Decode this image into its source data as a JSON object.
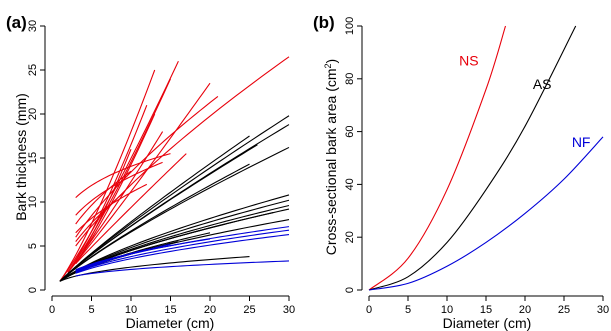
{
  "chart_data": [
    {
      "panel": "(a)",
      "type": "line",
      "xlabel": "Diameter (cm)",
      "ylabel": "Bark thickness (mm)",
      "xlim": [
        0,
        30
      ],
      "ylim": [
        0,
        30
      ],
      "xticks": [
        0,
        5,
        10,
        15,
        20,
        25,
        30
      ],
      "yticks": [
        0,
        5,
        10,
        15,
        20,
        25,
        30
      ],
      "grid": false,
      "colors": {
        "red": "#e8000b",
        "black": "#000000",
        "blue": "#0000d8"
      },
      "series": [
        {
          "color": "red",
          "x": [
            1,
            13
          ],
          "y": [
            1,
            25
          ]
        },
        {
          "color": "red",
          "x": [
            1,
            16
          ],
          "y": [
            1,
            26
          ]
        },
        {
          "color": "red",
          "x": [
            2,
            15
          ],
          "y": [
            2,
            24
          ]
        },
        {
          "color": "red",
          "x": [
            2,
            20
          ],
          "y": [
            2,
            23.5
          ]
        },
        {
          "color": "red",
          "x": [
            2,
            12
          ],
          "y": [
            2,
            21
          ]
        },
        {
          "color": "red",
          "x": [
            3,
            13
          ],
          "y": [
            3,
            20
          ]
        },
        {
          "color": "red",
          "x": [
            2,
            14
          ],
          "y": [
            2,
            18
          ]
        },
        {
          "color": "red",
          "x": [
            3,
            10
          ],
          "y": [
            3,
            16
          ]
        },
        {
          "color": "red",
          "x": [
            3,
            17
          ],
          "y": [
            3,
            15.5
          ]
        },
        {
          "color": "red",
          "x": [
            3,
            30
          ],
          "y": [
            5,
            26.5
          ]
        },
        {
          "color": "red",
          "x": [
            3,
            21
          ],
          "y": [
            6,
            22
          ]
        },
        {
          "color": "red",
          "x": [
            3,
            15
          ],
          "y": [
            10.5,
            15.5
          ]
        },
        {
          "color": "red",
          "x": [
            3,
            14
          ],
          "y": [
            8.5,
            14.5
          ]
        },
        {
          "color": "red",
          "x": [
            3,
            10
          ],
          "y": [
            7.5,
            13.5
          ]
        },
        {
          "color": "red",
          "x": [
            3,
            12
          ],
          "y": [
            6.5,
            12
          ]
        },
        {
          "color": "red",
          "x": [
            3,
            9
          ],
          "y": [
            5.5,
            11
          ]
        },
        {
          "color": "black",
          "x": [
            1,
            30
          ],
          "y": [
            1,
            19.8
          ]
        },
        {
          "color": "black",
          "x": [
            1,
            30
          ],
          "y": [
            1,
            18.8
          ]
        },
        {
          "color": "black",
          "x": [
            1,
            25
          ],
          "y": [
            1,
            17.5
          ]
        },
        {
          "color": "black",
          "x": [
            1,
            30
          ],
          "y": [
            1,
            16.2
          ]
        },
        {
          "color": "black",
          "x": [
            1,
            26
          ],
          "y": [
            1,
            16.5
          ]
        },
        {
          "color": "black",
          "x": [
            1,
            25
          ],
          "y": [
            1,
            14.3
          ]
        },
        {
          "color": "black",
          "x": [
            1,
            30
          ],
          "y": [
            1,
            10.8
          ]
        },
        {
          "color": "black",
          "x": [
            1,
            30
          ],
          "y": [
            1,
            10.2
          ]
        },
        {
          "color": "black",
          "x": [
            1,
            30
          ],
          "y": [
            1,
            9.6
          ]
        },
        {
          "color": "black",
          "x": [
            1,
            30
          ],
          "y": [
            1,
            9.2
          ]
        },
        {
          "color": "black",
          "x": [
            1,
            28
          ],
          "y": [
            1,
            8.8
          ]
        },
        {
          "color": "black",
          "x": [
            1,
            30
          ],
          "y": [
            1,
            8.0
          ]
        },
        {
          "color": "black",
          "x": [
            1,
            22
          ],
          "y": [
            1,
            7.5
          ]
        },
        {
          "color": "black",
          "x": [
            1,
            20
          ],
          "y": [
            1,
            6.5
          ]
        },
        {
          "color": "black",
          "x": [
            1,
            16
          ],
          "y": [
            1,
            5.5
          ]
        },
        {
          "color": "black",
          "x": [
            1,
            25
          ],
          "y": [
            1,
            3.8
          ]
        },
        {
          "color": "blue",
          "x": [
            3,
            30
          ],
          "y": [
            2.2,
            7.2
          ]
        },
        {
          "color": "blue",
          "x": [
            3,
            30
          ],
          "y": [
            2.0,
            6.8
          ]
        },
        {
          "color": "blue",
          "x": [
            3,
            30
          ],
          "y": [
            1.9,
            6.3
          ]
        },
        {
          "color": "blue",
          "x": [
            3,
            20
          ],
          "y": [
            2.3,
            5.8
          ]
        },
        {
          "color": "blue",
          "x": [
            3,
            15
          ],
          "y": [
            2.0,
            5.2
          ]
        },
        {
          "color": "blue",
          "x": [
            3,
            12
          ],
          "y": [
            2.1,
            4.6
          ]
        },
        {
          "color": "blue",
          "x": [
            3,
            30
          ],
          "y": [
            1.6,
            3.3
          ]
        }
      ]
    },
    {
      "panel": "(b)",
      "type": "line",
      "xlabel": "Diameter (cm)",
      "ylabel": "Cross-sectional bark area (cm",
      "ylabel_sup": "2",
      "ylabel_close": ")",
      "xlim": [
        0,
        30
      ],
      "ylim": [
        0,
        100
      ],
      "xticks": [
        0,
        5,
        10,
        15,
        20,
        25,
        30
      ],
      "yticks": [
        0,
        20,
        40,
        60,
        80,
        100
      ],
      "grid": false,
      "series": [
        {
          "name": "NS",
          "color": "#e8000b",
          "x": [
            0,
            5,
            10,
            15,
            17.5
          ],
          "y": [
            0,
            12,
            38,
            76,
            100
          ],
          "label_x": 12.8,
          "label_y": 87
        },
        {
          "name": "AS",
          "color": "#000000",
          "x": [
            0,
            5,
            10,
            15,
            20,
            26.5
          ],
          "y": [
            0,
            5,
            18,
            38,
            62,
            100
          ],
          "label_x": 22.2,
          "label_y": 78
        },
        {
          "name": "NF",
          "color": "#0000d8",
          "x": [
            0,
            5,
            10,
            15,
            20,
            25,
            30
          ],
          "y": [
            0,
            2.5,
            9,
            18,
            29,
            42,
            58
          ],
          "label_x": 27.2,
          "label_y": 56
        }
      ]
    }
  ]
}
